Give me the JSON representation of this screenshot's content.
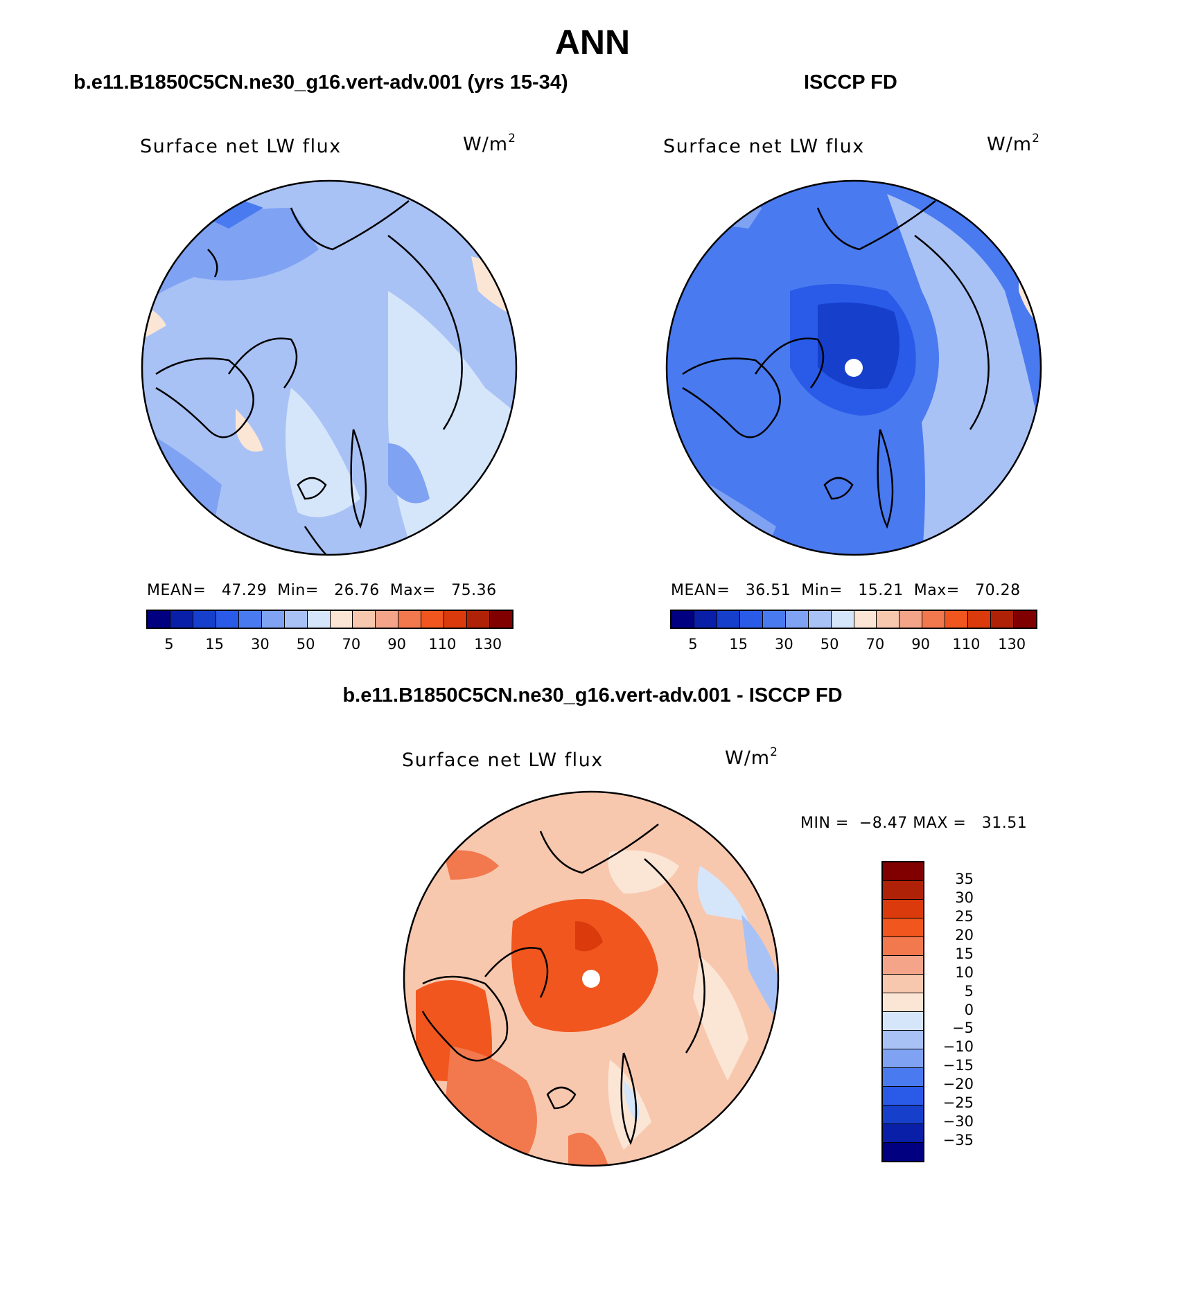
{
  "title": "ANN",
  "panels": {
    "model": {
      "header": "b.e11.B1850C5CN.ne30_g16.vert-adv.001 (yrs 15-34)",
      "label": "Surface net LW flux",
      "units": "W/m",
      "units_sup": "2",
      "stats": {
        "mean_label": "MEAN=",
        "mean": "47.29",
        "min_label": "Min=",
        "min": "26.76",
        "max_label": "Max=",
        "max": "75.36"
      }
    },
    "obs": {
      "header": "ISCCP FD",
      "label": "Surface net LW flux",
      "units": "W/m",
      "units_sup": "2",
      "stats": {
        "mean_label": "MEAN=",
        "mean": "36.51",
        "min_label": "Min=",
        "min": "15.21",
        "max_label": "Max=",
        "max": "70.28"
      }
    },
    "diff": {
      "header": "b.e11.B1850C5CN.ne30_g16.vert-adv.001 - ISCCP FD",
      "label": "Surface net LW flux",
      "units": "W/m",
      "units_sup": "2",
      "stats": {
        "min_label": "MIN =",
        "min": "−8.47",
        "max_label": "MAX =",
        "max": "31.51"
      }
    }
  },
  "colorbars": {
    "absolute": {
      "colors": [
        "#000080",
        "#0a1fa8",
        "#1640cc",
        "#2a5ae8",
        "#4a7af0",
        "#7fa2f2",
        "#a9c2f6",
        "#d6e6fa",
        "#fbe6d6",
        "#f8c8ae",
        "#f4a488",
        "#f2784e",
        "#f0561e",
        "#da3a0c",
        "#b02208",
        "#800000"
      ],
      "ticks": [
        "5",
        "15",
        "30",
        "50",
        "70",
        "90",
        "110",
        "130"
      ]
    },
    "difference": {
      "colors": [
        "#800000",
        "#b02208",
        "#da3a0c",
        "#f0561e",
        "#f2784e",
        "#f4a488",
        "#f8c8ae",
        "#fbe6d6",
        "#d6e6fa",
        "#a9c2f6",
        "#7fa2f2",
        "#4a7af0",
        "#2a5ae8",
        "#1640cc",
        "#0a1fa8",
        "#000080"
      ],
      "ticks": [
        "35",
        "30",
        "25",
        "20",
        "15",
        "10",
        "5",
        "0",
        "−5",
        "−10",
        "−15",
        "−20",
        "−25",
        "−30",
        "−35"
      ]
    }
  }
}
